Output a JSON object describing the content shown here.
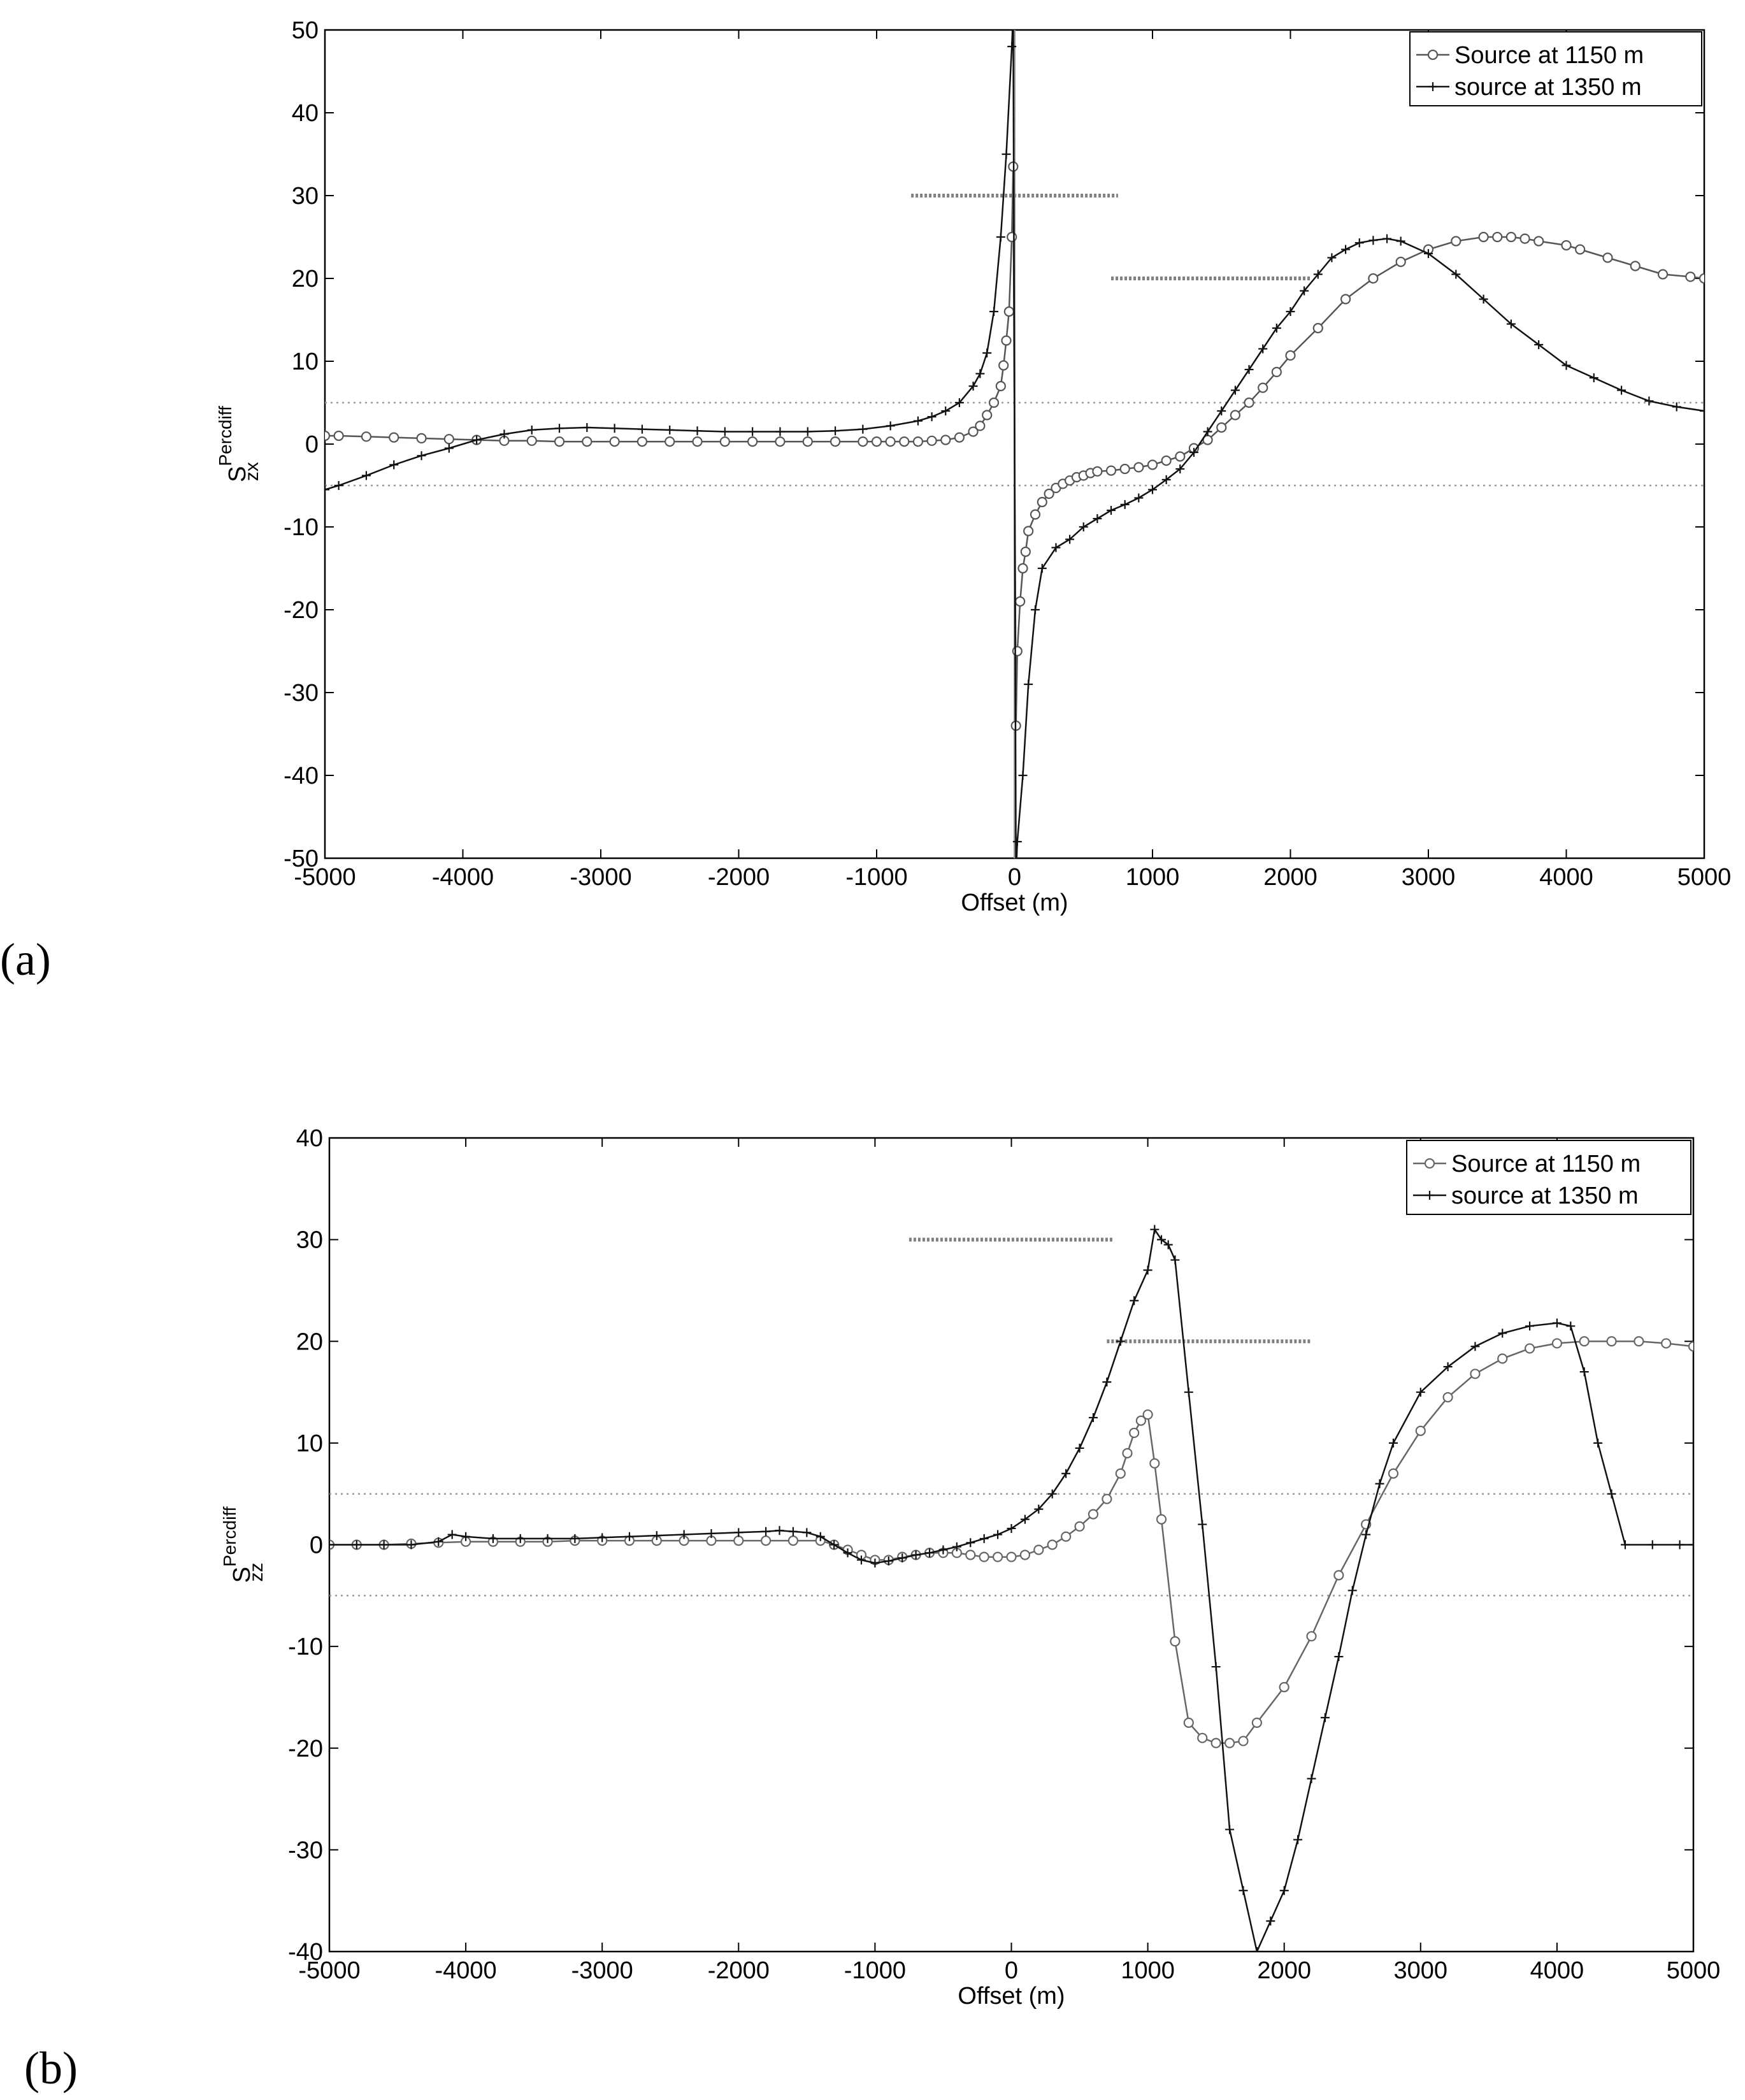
{
  "chart_data": [
    {
      "type": "line",
      "panel_label": "(a)",
      "xlabel": "Offset (m)",
      "ylabel": {
        "base": "S",
        "sub": "zx",
        "sup": "Percdiff"
      },
      "xlim": [
        -5000,
        5000
      ],
      "ylim": [
        -50,
        50
      ],
      "xticks": [
        "-5000",
        "-4000",
        "-3000",
        "-2000",
        "-1000",
        "0",
        "1000",
        "2000",
        "3000",
        "4000",
        "5000"
      ],
      "yticks": [
        "-50",
        "-40",
        "-30",
        "-20",
        "-10",
        "0",
        "10",
        "20",
        "30",
        "40",
        "50"
      ],
      "legend_position": "top-right",
      "series": [
        {
          "name": "Source at 1150 m",
          "marker": "circle",
          "color": "#555555",
          "x": [
            -5000,
            -4900,
            -4700,
            -4500,
            -4300,
            -4100,
            -3900,
            -3700,
            -3500,
            -3300,
            -3100,
            -2900,
            -2700,
            -2500,
            -2300,
            -2100,
            -1900,
            -1700,
            -1500,
            -1300,
            -1100,
            -1000,
            -900,
            -800,
            -700,
            -600,
            -500,
            -400,
            -300,
            -250,
            -200,
            -150,
            -100,
            -80,
            -60,
            -40,
            -20,
            -10,
            10,
            20,
            40,
            60,
            80,
            100,
            150,
            200,
            250,
            300,
            350,
            400,
            450,
            500,
            550,
            600,
            700,
            800,
            900,
            1000,
            1100,
            1200,
            1300,
            1400,
            1500,
            1600,
            1700,
            1800,
            1900,
            2000,
            2200,
            2400,
            2600,
            2800,
            3000,
            3200,
            3400,
            3500,
            3600,
            3700,
            3800,
            4000,
            4100,
            4300,
            4500,
            4700,
            4900,
            5000
          ],
          "y": [
            1.0,
            1.0,
            0.9,
            0.8,
            0.7,
            0.6,
            0.5,
            0.4,
            0.4,
            0.3,
            0.3,
            0.3,
            0.3,
            0.3,
            0.3,
            0.3,
            0.3,
            0.3,
            0.3,
            0.3,
            0.3,
            0.3,
            0.3,
            0.3,
            0.3,
            0.4,
            0.5,
            0.8,
            1.5,
            2.2,
            3.5,
            5.0,
            7.0,
            9.5,
            12.5,
            16.0,
            25.0,
            33.5,
            -34.0,
            -25.0,
            -19.0,
            -15.0,
            -13.0,
            -10.5,
            -8.5,
            -7.0,
            -6.0,
            -5.3,
            -4.8,
            -4.4,
            -4.0,
            -3.8,
            -3.5,
            -3.3,
            -3.2,
            -3.0,
            -2.8,
            -2.5,
            -2.0,
            -1.5,
            -0.5,
            0.5,
            2.0,
            3.5,
            5.0,
            6.8,
            8.7,
            10.7,
            14.0,
            17.5,
            20.0,
            22.0,
            23.5,
            24.5,
            25.0,
            25.0,
            25.0,
            24.8,
            24.5,
            24.0,
            23.5,
            22.5,
            21.5,
            20.5,
            20.2,
            20.0
          ]
        },
        {
          "name": "source at 1350 m",
          "marker": "plus",
          "color": "#111111",
          "x": [
            -5000,
            -4900,
            -4700,
            -4500,
            -4300,
            -4100,
            -3900,
            -3700,
            -3500,
            -3300,
            -3100,
            -2900,
            -2700,
            -2500,
            -2300,
            -2100,
            -1900,
            -1700,
            -1500,
            -1300,
            -1100,
            -900,
            -700,
            -600,
            -500,
            -400,
            -300,
            -250,
            -200,
            -150,
            -100,
            -60,
            -20,
            -10,
            10,
            20,
            60,
            100,
            150,
            200,
            300,
            400,
            500,
            600,
            700,
            800,
            900,
            1000,
            1100,
            1200,
            1300,
            1400,
            1500,
            1600,
            1700,
            1800,
            1900,
            2000,
            2100,
            2200,
            2300,
            2400,
            2500,
            2600,
            2700,
            2800,
            3000,
            3200,
            3400,
            3600,
            3800,
            4000,
            4200,
            4400,
            4600,
            4800,
            5000
          ],
          "y": [
            -5.5,
            -5.0,
            -3.8,
            -2.5,
            -1.4,
            -0.5,
            0.5,
            1.2,
            1.7,
            1.9,
            2.0,
            1.9,
            1.8,
            1.7,
            1.6,
            1.5,
            1.5,
            1.5,
            1.5,
            1.6,
            1.8,
            2.2,
            2.8,
            3.3,
            4.0,
            5.0,
            7.0,
            8.5,
            11.0,
            16.0,
            25.0,
            35.0,
            48.0,
            52.0,
            -52.0,
            -48.0,
            -40.0,
            -29.0,
            -20.0,
            -15.0,
            -12.5,
            -11.5,
            -10.0,
            -9.0,
            -8.0,
            -7.3,
            -6.5,
            -5.5,
            -4.3,
            -3.0,
            -1.0,
            1.5,
            4.0,
            6.5,
            9.0,
            11.5,
            14.0,
            16.0,
            18.5,
            20.5,
            22.5,
            23.5,
            24.3,
            24.6,
            24.8,
            24.5,
            23.0,
            20.5,
            17.5,
            14.5,
            12.0,
            9.5,
            8.0,
            6.5,
            5.2,
            4.5,
            4.0
          ]
        }
      ],
      "reference_lines": [
        {
          "y": 5,
          "x": [
            -5000,
            5000
          ],
          "style": "dotted"
        },
        {
          "y": -5,
          "x": [
            -5000,
            5000
          ],
          "style": "dotted"
        },
        {
          "y": 30,
          "x": [
            -750,
            750
          ],
          "style": "hatched"
        },
        {
          "y": 20,
          "x": [
            700,
            2150
          ],
          "style": "hatched"
        }
      ],
      "vertical_line_x": 0
    },
    {
      "type": "line",
      "panel_label": "(b)",
      "xlabel": "Offset (m)",
      "ylabel": {
        "base": "S",
        "sub": "zz",
        "sup": "Percdiff"
      },
      "xlim": [
        -5000,
        5000
      ],
      "ylim": [
        -40,
        40
      ],
      "xticks": [
        "-5000",
        "-4000",
        "-3000",
        "-2000",
        "-1000",
        "0",
        "1000",
        "2000",
        "3000",
        "4000",
        "5000"
      ],
      "yticks": [
        "-40",
        "-30",
        "-20",
        "-10",
        "0",
        "10",
        "20",
        "30",
        "40"
      ],
      "legend_position": "top-right",
      "series": [
        {
          "name": "Source at 1150 m",
          "marker": "circle",
          "color": "#666666",
          "x": [
            -5000,
            -4800,
            -4600,
            -4400,
            -4200,
            -4000,
            -3800,
            -3600,
            -3400,
            -3200,
            -3000,
            -2800,
            -2600,
            -2400,
            -2200,
            -2000,
            -1800,
            -1600,
            -1400,
            -1300,
            -1200,
            -1100,
            -1000,
            -900,
            -800,
            -700,
            -600,
            -500,
            -400,
            -300,
            -200,
            -100,
            0,
            100,
            200,
            300,
            400,
            500,
            600,
            700,
            800,
            850,
            900,
            950,
            1000,
            1050,
            1100,
            1200,
            1300,
            1400,
            1500,
            1600,
            1700,
            1800,
            2000,
            2200,
            2400,
            2600,
            2800,
            3000,
            3200,
            3400,
            3600,
            3800,
            4000,
            4200,
            4400,
            4600,
            4800,
            5000
          ],
          "y": [
            0.0,
            0.0,
            0.0,
            0.1,
            0.2,
            0.3,
            0.3,
            0.3,
            0.3,
            0.4,
            0.4,
            0.4,
            0.4,
            0.4,
            0.4,
            0.4,
            0.4,
            0.4,
            0.4,
            0.0,
            -0.5,
            -1.0,
            -1.5,
            -1.5,
            -1.2,
            -1.0,
            -0.8,
            -0.8,
            -0.8,
            -1.0,
            -1.2,
            -1.2,
            -1.2,
            -1.0,
            -0.5,
            0.0,
            0.8,
            1.8,
            3.0,
            4.5,
            7.0,
            9.0,
            11.0,
            12.2,
            12.8,
            8.0,
            2.5,
            -9.5,
            -17.5,
            -19.0,
            -19.5,
            -19.5,
            -19.3,
            -17.5,
            -14.0,
            -9.0,
            -3.0,
            2.0,
            7.0,
            11.2,
            14.5,
            16.8,
            18.3,
            19.3,
            19.8,
            20.0,
            20.0,
            20.0,
            19.8,
            19.5
          ]
        },
        {
          "name": "source at 1350 m",
          "marker": "plus",
          "color": "#111111",
          "x": [
            -5000,
            -4800,
            -4600,
            -4400,
            -4200,
            -4100,
            -4000,
            -3800,
            -3600,
            -3400,
            -3200,
            -3000,
            -2800,
            -2600,
            -2400,
            -2200,
            -2000,
            -1800,
            -1700,
            -1600,
            -1500,
            -1400,
            -1300,
            -1200,
            -1100,
            -1000,
            -900,
            -800,
            -700,
            -600,
            -500,
            -400,
            -300,
            -200,
            -100,
            0,
            100,
            200,
            300,
            400,
            500,
            600,
            700,
            800,
            900,
            1000,
            1050,
            1100,
            1150,
            1200,
            1300,
            1400,
            1500,
            1600,
            1700,
            1800,
            1900,
            2000,
            2100,
            2200,
            2300,
            2400,
            2500,
            2600,
            2700,
            2800,
            3000,
            3200,
            3400,
            3600,
            3800,
            4000,
            4100,
            4200,
            4300,
            4400,
            4500,
            4700,
            4900,
            5000
          ],
          "y": [
            0.0,
            0.0,
            0.0,
            0.0,
            0.3,
            1.0,
            0.8,
            0.6,
            0.6,
            0.6,
            0.6,
            0.7,
            0.8,
            0.9,
            1.0,
            1.1,
            1.2,
            1.3,
            1.4,
            1.3,
            1.2,
            0.8,
            0.0,
            -0.8,
            -1.5,
            -1.8,
            -1.6,
            -1.3,
            -1.0,
            -0.8,
            -0.5,
            -0.2,
            0.2,
            0.6,
            1.0,
            1.6,
            2.5,
            3.5,
            5.0,
            7.0,
            9.5,
            12.5,
            16.0,
            20.0,
            24.0,
            27.0,
            31.0,
            30.0,
            29.5,
            28.0,
            15.0,
            2.0,
            -12.0,
            -28.0,
            -34.0,
            -40.0,
            -37.0,
            -34.0,
            -29.0,
            -23.0,
            -17.0,
            -11.0,
            -4.5,
            1.0,
            6.0,
            10.0,
            15.0,
            17.5,
            19.5,
            20.8,
            21.5,
            21.8,
            21.5,
            17.0,
            10.0,
            5.0,
            0.0,
            0.0,
            0.0,
            0.0
          ]
        }
      ],
      "reference_lines": [
        {
          "y": 5,
          "x": [
            -5000,
            5000
          ],
          "style": "dotted"
        },
        {
          "y": -5,
          "x": [
            -5000,
            5000
          ],
          "style": "dotted"
        },
        {
          "y": 30,
          "x": [
            -750,
            750
          ],
          "style": "hatched"
        },
        {
          "y": 20,
          "x": [
            700,
            2200
          ],
          "style": "hatched"
        }
      ]
    }
  ]
}
